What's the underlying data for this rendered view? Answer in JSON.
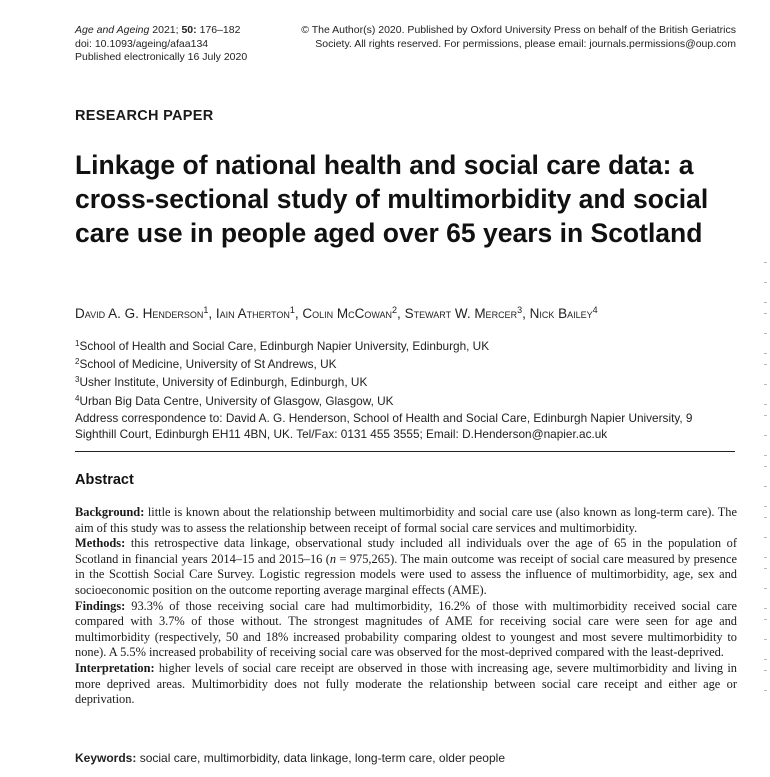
{
  "header": {
    "journal": "Age and Ageing",
    "year": "2021;",
    "volume": "50:",
    "pages": "176–182",
    "doi": "doi: 10.1093/ageing/afaa134",
    "published": "Published electronically 16 July 2020",
    "copyright_line1": "© The Author(s) 2020. Published by Oxford University Press on behalf of the British Geriatrics",
    "copyright_line2": "Society. All rights reserved. For permissions, please email: journals.permissions@oup.com"
  },
  "section_label": "RESEARCH PAPER",
  "title": "Linkage of national health and social care data: a cross-sectional study of multimorbidity and social care use in people aged over 65 years in Scotland",
  "authors": [
    {
      "name": "David A. G. Henderson",
      "aff": "1"
    },
    {
      "name": "Iain Atherton",
      "aff": "1"
    },
    {
      "name": "Colin McCowan",
      "aff": "2"
    },
    {
      "name": "Stewart W. Mercer",
      "aff": "3"
    },
    {
      "name": "Nick Bailey",
      "aff": "4"
    }
  ],
  "affiliations": [
    {
      "num": "1",
      "text": "School of Health and Social Care, Edinburgh Napier University, Edinburgh, UK"
    },
    {
      "num": "2",
      "text": "School of Medicine, University of St Andrews, UK"
    },
    {
      "num": "3",
      "text": "Usher Institute, University of Edinburgh, Edinburgh, UK"
    },
    {
      "num": "4",
      "text": "Urban Big Data Centre, University of Glasgow, Glasgow, UK"
    }
  ],
  "correspondence": "Address correspondence to: David A. G. Henderson, School of Health and Social Care, Edinburgh Napier University, 9 Sighthill Court, Edinburgh EH11 4BN, UK. Tel/Fax: 0131 455 3555; Email: D.Henderson@napier.ac.uk",
  "abstract": {
    "heading": "Abstract",
    "background_label": "Background:",
    "background_text": "little is known about the relationship between multimorbidity and social care use (also known as long-term care). The aim of this study was to assess the relationship between receipt of formal social care services and multimorbidity.",
    "methods_label": "Methods:",
    "methods_text_a": "this retrospective data linkage, observational study included all individuals over the age of 65 in the population of Scotland in financial years 2014–15 and 2015–16 (",
    "methods_n": "n",
    "methods_text_b": " = 975,265). The main outcome was receipt of social care measured by presence in the Scottish Social Care Survey. Logistic regression models were used to assess the influence of multimorbidity, age, sex and socioeconomic position on the outcome reporting average marginal effects (AME).",
    "findings_label": "Findings:",
    "findings_text": "93.3% of those receiving social care had multimorbidity, 16.2% of those with multimorbidity received social care compared with 3.7% of those without. The strongest magnitudes of AME for receiving social care were seen for age and multimorbidity (respectively, 50 and 18% increased probability comparing oldest to youngest and most severe multimorbidity to none). A 5.5% increased probability of receiving social care was observed for the most-deprived compared with the least-deprived.",
    "interpretation_label": "Interpretation:",
    "interpretation_text": "higher levels of social care receipt are observed in those with increasing age, severe multimorbidity and living in more deprived areas. Multimorbidity does not fully moderate the relationship between social care receipt and either age or deprivation."
  },
  "keywords": {
    "label": "Keywords:",
    "text": "social care, multimorbidity, data linkage, long-term care, older people"
  }
}
